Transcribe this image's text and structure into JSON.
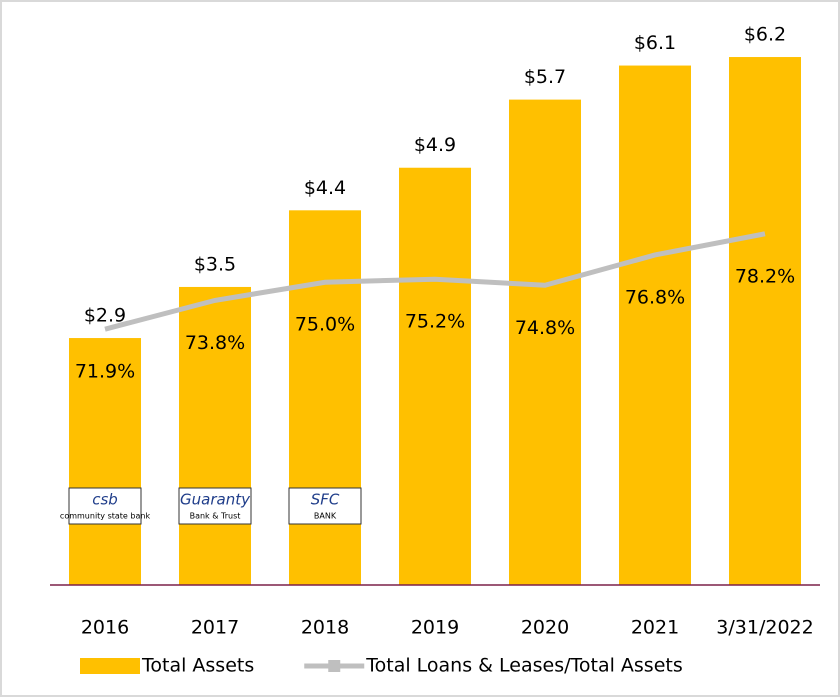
{
  "chart_data": {
    "type": "bar_line",
    "categories": [
      "2016",
      "2017",
      "2018",
      "2019",
      "2020",
      "2021",
      "3/31/2022"
    ],
    "series": [
      {
        "name": "Total Assets",
        "type": "bar",
        "color": "#ffc000",
        "values": [
          2.9,
          3.5,
          4.4,
          4.9,
          5.7,
          6.1,
          6.2
        ],
        "value_labels": [
          "$2.9",
          "$3.5",
          "$4.4",
          "$4.9",
          "$5.7",
          "$6.1",
          "$6.2"
        ]
      },
      {
        "name": "Total Loans & Leases/Total Assets",
        "type": "line",
        "axis": "y2",
        "color": "#bfbfbf",
        "values": [
          71.9,
          73.8,
          75.0,
          75.2,
          74.8,
          76.8,
          78.2
        ],
        "value_labels": [
          "71.9%",
          "73.8%",
          "75.0%",
          "75.2%",
          "74.8%",
          "76.8%",
          "78.2%"
        ]
      }
    ],
    "ylim": [
      0,
      6.4
    ],
    "y2lim": [
      55,
      91
    ],
    "legend": "bottom",
    "logos": [
      {
        "name": "csb",
        "subtitle": "community state bank"
      },
      {
        "name": "Guaranty",
        "subtitle": "Bank & Trust"
      },
      {
        "name": "SFC",
        "subtitle": "BANK"
      }
    ]
  }
}
